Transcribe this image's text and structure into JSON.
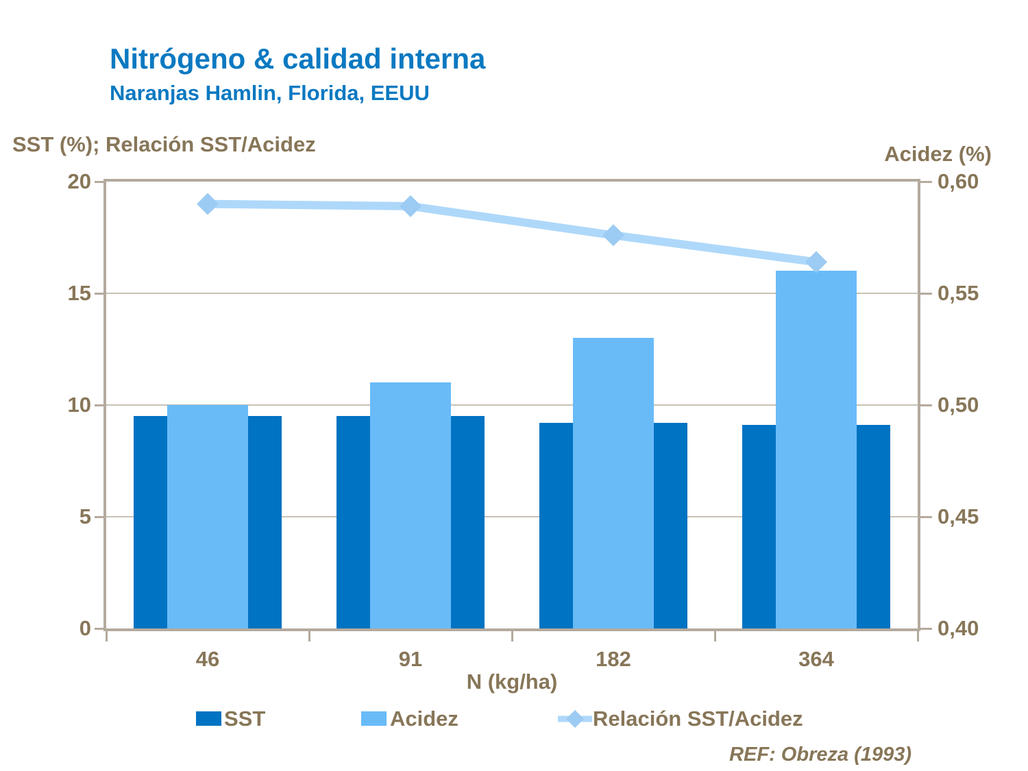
{
  "header": {
    "title": "Nitrógeno & calidad interna",
    "subtitle": "Naranjas Hamlin, Florida, EEUU"
  },
  "footer": {
    "ref": "REF: Obreza (1993)"
  },
  "colors": {
    "title_blue": "#0b79c1",
    "axis_text_brown": "#877658",
    "sst_bar": "#0073c2",
    "acidez_bar": "#69bbf8",
    "ratio_line": "#aed8fa",
    "ratio_marker": "#9ccbf3",
    "gridline": "#c9c1b5",
    "plot_border": "#b4aa9d"
  },
  "chart_data": {
    "type": "bar",
    "subtype": "combo-bar-line",
    "title": "Nitrógeno & calidad interna",
    "subtitle": "Naranjas Hamlin, Florida, EEUU",
    "categories": [
      "46",
      "91",
      "182",
      "364"
    ],
    "x_axis_title": "N (kg/ha)",
    "grid": "horizontal gridlines at left-axis 5, 10, 15",
    "legend_position": "bottom",
    "left_axis": {
      "title": "SST (%); Relación SST/Acidez",
      "min": 0,
      "max": 20,
      "tick_labels": [
        "20",
        "15",
        "10",
        "5",
        "0"
      ],
      "tick_values": [
        20,
        15,
        10,
        5,
        0
      ]
    },
    "right_axis": {
      "title": "Acidez (%)",
      "min": 0.4,
      "max": 0.6,
      "tick_labels": [
        "0,60",
        "0,55",
        "0,50",
        "0,45",
        "0,40"
      ],
      "tick_values": [
        0.6,
        0.55,
        0.5,
        0.45,
        0.4
      ]
    },
    "series": [
      {
        "name": "SST",
        "type": "bar",
        "axis": "left",
        "color": "#0073c2",
        "values": [
          9.5,
          9.5,
          9.2,
          9.1
        ]
      },
      {
        "name": "Acidez",
        "type": "bar",
        "axis": "right",
        "color": "#69bbf8",
        "values": [
          0.5,
          0.51,
          0.53,
          0.56
        ]
      },
      {
        "name": "Relación SST/Acidez",
        "type": "line",
        "axis": "left",
        "color": "#aed8fa",
        "marker": "diamond",
        "marker_color": "#9ccbf3",
        "values": [
          19.0,
          18.9,
          17.6,
          16.4
        ]
      }
    ]
  }
}
